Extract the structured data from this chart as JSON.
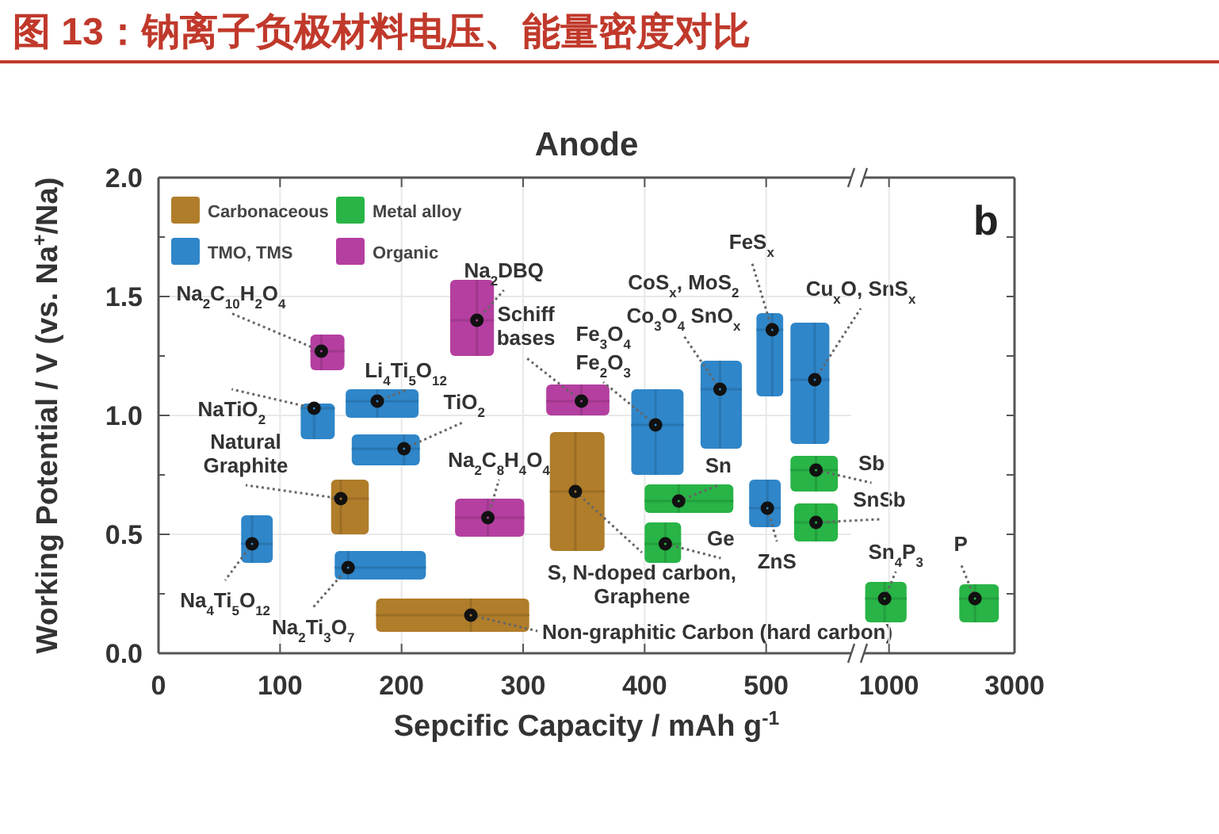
{
  "chart_data": [
    {
      "type": "scatter",
      "title": "图 13：钠离子负极材料电压、能量密度对比",
      "subtitle": "Anode",
      "xlabel": "Sepcific Capacity / mAh g$^{-1}$",
      "ylabel": "Working Potential / V (vs. Na$^{+}$/Na)",
      "xlim": [
        0,
        570
      ],
      "xticks": [
        0,
        100,
        200,
        300,
        400,
        500
      ],
      "ylim": [
        0,
        2
      ],
      "yticks": [
        {
          "value": 0,
          "label": "0.0"
        },
        {
          "value": 0.25,
          "label": null
        },
        {
          "value": 0.5,
          "label": "0.5"
        },
        {
          "value": 0.75,
          "label": null
        },
        {
          "value": 1,
          "label": "1.0"
        },
        {
          "value": 1.25,
          "label": null
        },
        {
          "value": 1.5,
          "label": "1.5"
        },
        {
          "value": 1.75,
          "label": null
        },
        {
          "value": 2,
          "label": "2.0"
        }
      ],
      "grid": true,
      "legend": "top left",
      "marker": "circle",
      "series": [
        {
          "name": "Carbonaceous",
          "color": "#b07d2a",
          "x": [
            150,
            257,
            343
          ],
          "values": [
            0.65,
            0.16,
            0.68
          ],
          "xerrors": [
            [
              142,
              173
            ],
            [
              179,
              305
            ],
            [
              322,
              367
            ]
          ],
          "errors": [
            [
              0.5,
              0.73
            ],
            [
              0.09,
              0.23
            ],
            [
              0.43,
              0.93
            ]
          ]
        },
        {
          "name": "TMO, TMS",
          "color": "#2f86c8",
          "x": [
            128,
            180,
            202,
            77,
            156,
            409,
            462,
            505,
            540,
            501
          ],
          "values": [
            1.03,
            1.06,
            0.86,
            0.46,
            0.36,
            0.96,
            1.11,
            1.36,
            1.15,
            0.61
          ],
          "xerrors": [
            [
              117,
              145
            ],
            [
              154,
              214
            ],
            [
              159,
              215
            ],
            [
              68,
              94
            ],
            [
              145,
              220
            ],
            [
              389,
              432
            ],
            [
              446,
              480
            ],
            [
              492,
              514
            ],
            [
              520,
              552
            ],
            [
              486,
              512
            ]
          ],
          "errors": [
            [
              0.9,
              1.05
            ],
            [
              0.99,
              1.11
            ],
            [
              0.79,
              0.92
            ],
            [
              0.38,
              0.58
            ],
            [
              0.31,
              0.43
            ],
            [
              0.75,
              1.11
            ],
            [
              0.86,
              1.23
            ],
            [
              1.08,
              1.43
            ],
            [
              0.88,
              1.39
            ],
            [
              0.53,
              0.73
            ]
          ]
        },
        {
          "name": "Metal alloy",
          "color": "#28b446",
          "x": [
            428,
            417,
            541,
            541
          ],
          "values": [
            0.64,
            0.46,
            0.77,
            0.55
          ],
          "xerrors": [
            [
              400,
              473
            ],
            [
              400,
              430
            ],
            [
              520,
              559
            ],
            [
              523,
              559
            ]
          ],
          "errors": [
            [
              0.59,
              0.71
            ],
            [
              0.38,
              0.55
            ],
            [
              0.68,
              0.83
            ],
            [
              0.47,
              0.63
            ]
          ]
        },
        {
          "name": "Organic",
          "color": "#b43fa0",
          "x": [
            134,
            262,
            348,
            271
          ],
          "values": [
            1.27,
            1.4,
            1.06,
            0.57
          ],
          "xerrors": [
            [
              125,
              153
            ],
            [
              240,
              276
            ],
            [
              319,
              371
            ],
            [
              244,
              301
            ]
          ],
          "errors": [
            [
              1.19,
              1.34
            ],
            [
              1.25,
              1.57
            ],
            [
              1.0,
              1.13
            ],
            [
              0.49,
              0.65
            ]
          ]
        }
      ],
      "annotations": [
        {
          "text": "Na$_{2}$C$_{10}$H$_{2}$O$_{4}$",
          "x": 134,
          "y": 1.27
        },
        {
          "text": "Na$_{2}$DBQ",
          "x": 262,
          "y": 1.4
        },
        {
          "text": "Schiff\nbases",
          "x": 348,
          "y": 1.06
        },
        {
          "text": "NaTiO$_{2}$",
          "x": 128,
          "y": 1.03
        },
        {
          "text": "Li$_{4}$Ti$_{5}$O$_{12}$",
          "x": 180,
          "y": 1.06
        },
        {
          "text": "TiO$_{2}$",
          "x": 202,
          "y": 0.86
        },
        {
          "text": "Natural\nGraphite",
          "x": 150,
          "y": 0.65
        },
        {
          "text": "Na$_{2}$C$_{8}$H$_{4}$O$_{4}$",
          "x": 271,
          "y": 0.57
        },
        {
          "text": "Na$_{4}$Ti$_{5}$O$_{12}$",
          "x": 77,
          "y": 0.46
        },
        {
          "text": "Na$_{2}$Ti$_{3}$O$_{7}$",
          "x": 156,
          "y": 0.36
        },
        {
          "text": "Non-graphitic Carbon (hard carbon)",
          "x": 257,
          "y": 0.16
        },
        {
          "text": "S, N-doped carbon,\nGraphene",
          "x": 343,
          "y": 0.68
        },
        "Fe$_{3}$O$_{4}$",
        {
          "text": "Fe$_{2}$O$_{3}$",
          "x": 409,
          "y": 0.96
        },
        "CoS$_{x}$, MoS$_{2}$",
        {
          "text": "Co$_{3}$O$_{4}$ SnO$_{x}$",
          "x": 462,
          "y": 1.11
        },
        {
          "text": "FeS$_{x}$",
          "x": 505,
          "y": 1.36
        },
        {
          "text": "Cu$_{x}$O, SnS$_{x}$",
          "x": 540,
          "y": 1.15
        },
        {
          "text": "Sn",
          "x": 428,
          "y": 0.64
        },
        {
          "text": "Ge",
          "x": 417,
          "y": 0.46
        },
        {
          "text": "ZnS",
          "x": 501,
          "y": 0.61
        },
        {
          "text": "Sb",
          "x": 541,
          "y": 0.77
        },
        {
          "text": "SnSb",
          "x": 541,
          "y": 0.55
        }
      ]
    },
    {
      "type": "scatter",
      "xlim": [
        600,
        3000
      ],
      "xticks": [
        1000,
        3000
      ],
      "ylim": [
        0,
        2
      ],
      "yticks": [
        {
          "value": 0,
          "label": null
        },
        {
          "value": 0.25,
          "label": null
        },
        {
          "value": 0.5,
          "label": null
        },
        {
          "value": 0.75,
          "label": null
        },
        {
          "value": 1,
          "label": null
        },
        {
          "value": 1.25,
          "label": null
        },
        {
          "value": 1.5,
          "label": null
        },
        {
          "value": 1.75,
          "label": null
        },
        {
          "value": 2,
          "label": null
        }
      ],
      "tick_labels": "x",
      "grid": true,
      "marker": "circle",
      "series": [
        {
          "color": "#28b446",
          "x": [
            930,
            2370
          ],
          "values": [
            0.23,
            0.23
          ],
          "xerrors": [
            [
              620,
              1280
            ],
            [
              2120,
              2750
            ]
          ],
          "errors": [
            [
              0.13,
              0.3
            ],
            [
              0.13,
              0.29
            ]
          ]
        }
      ],
      "annotations": [
        {
          "text": "Sn$_{4}$P$_{3}$",
          "x": 930,
          "y": 0.23
        },
        {
          "text": "P",
          "x": 2370,
          "y": 0.23
        },
        "b"
      ]
    }
  ]
}
